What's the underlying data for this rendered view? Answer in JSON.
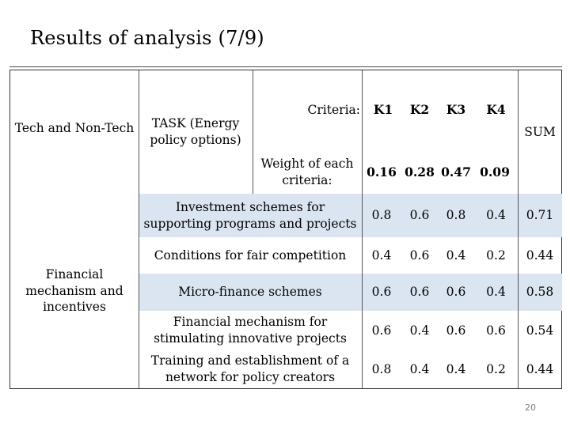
{
  "slide": {
    "title": "Results of analysis  (7/9)",
    "page_number": "20"
  },
  "header": {
    "group_label": "Tech and Non-Tech",
    "task_label": "TASK (Energy policy options)",
    "criteria_label": "Criteria:",
    "weight_label": "Weight of each criteria:",
    "criteria": [
      {
        "name": "K1",
        "weight": "0.16"
      },
      {
        "name": "K2",
        "weight": "0.28"
      },
      {
        "name": "K3",
        "weight": "0.47"
      },
      {
        "name": "K4",
        "weight": "0.09"
      }
    ],
    "sum_label": "SUM"
  },
  "group": {
    "name": "Financial mechanism and incentives"
  },
  "rows": [
    {
      "task": "Investment schemes for supporting programs and projects",
      "k1": "0.8",
      "k2": "0.6",
      "k3": "0.8",
      "k4": "0.4",
      "sum": "0.71"
    },
    {
      "task": "Conditions for fair competition",
      "k1": "0.4",
      "k2": "0.6",
      "k3": "0.4",
      "k4": "0.2",
      "sum": "0.44"
    },
    {
      "task": "Micro-finance schemes",
      "k1": "0.6",
      "k2": "0.6",
      "k3": "0.6",
      "k4": "0.4",
      "sum": "0.58"
    },
    {
      "task": "Financial mechanism for stimulating innovative projects",
      "k1": "0.6",
      "k2": "0.4",
      "k3": "0.6",
      "k4": "0.6",
      "sum": "0.54"
    },
    {
      "task": "Training and establishment of a network for policy creators",
      "k1": "0.8",
      "k2": "0.4",
      "k3": "0.4",
      "k4": "0.2",
      "sum": "0.44"
    }
  ],
  "colors": {
    "row_shade": "#dbe5f1",
    "border": "#333333"
  }
}
